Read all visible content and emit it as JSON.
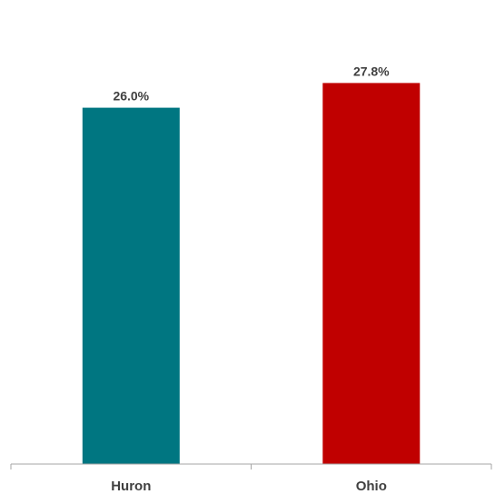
{
  "chart_data": {
    "type": "bar",
    "categories": [
      "Huron",
      "Ohio"
    ],
    "values": [
      26.0,
      27.8
    ],
    "value_labels": [
      "26.0%",
      "27.8%"
    ],
    "colors": [
      "#007681",
      "#c00000"
    ],
    "title": "",
    "xlabel": "",
    "ylabel": "",
    "ylim": [
      0,
      32
    ],
    "grid": false,
    "legend": "none"
  }
}
